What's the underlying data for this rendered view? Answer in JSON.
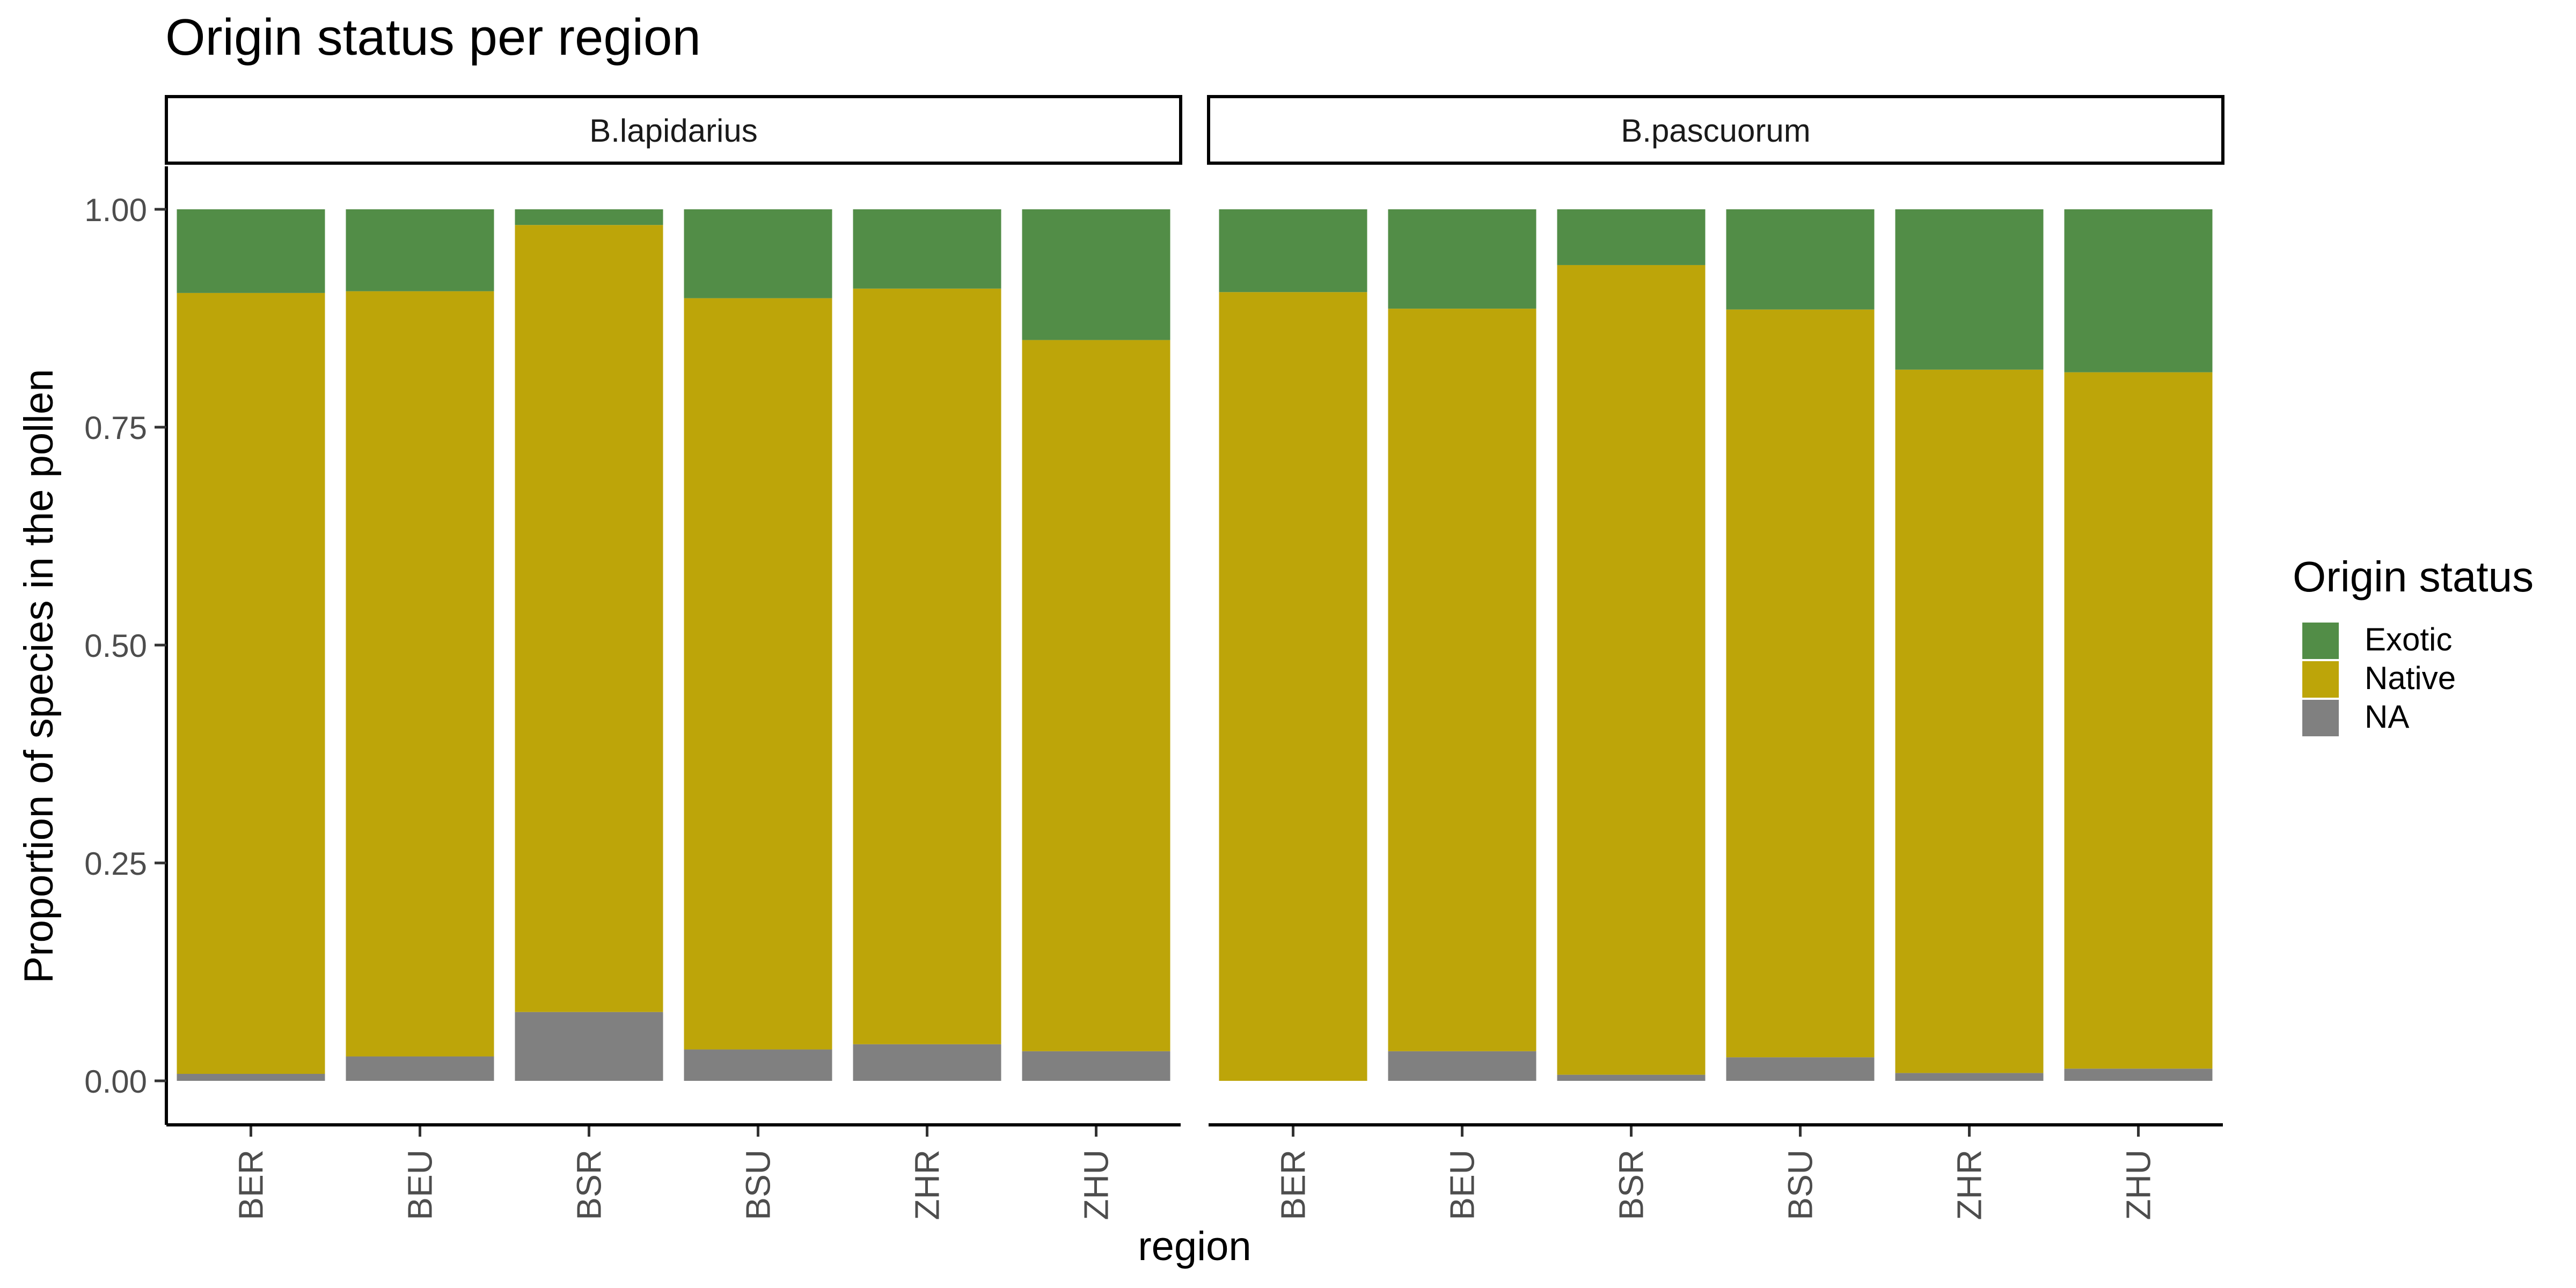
{
  "chart_data": {
    "type": "bar",
    "stacked": true,
    "title": "Origin status per region",
    "xlabel": "region",
    "ylabel": "Proportion of species in the pollen",
    "ylim": [
      0,
      1
    ],
    "yticks": [
      "0.00",
      "0.25",
      "0.50",
      "0.75",
      "1.00"
    ],
    "ytick_values": [
      0,
      0.25,
      0.5,
      0.75,
      1
    ],
    "grid": false,
    "legend": {
      "title": "Origin status",
      "position": "right",
      "entries": [
        {
          "name": "Exotic",
          "color": "#528D47"
        },
        {
          "name": "Native",
          "color": "#BDA509"
        },
        {
          "name": "NA",
          "color": "#808080"
        }
      ]
    },
    "categories": [
      "BER",
      "BEU",
      "BSR",
      "BSU",
      "ZHR",
      "ZHU"
    ],
    "facets": [
      {
        "label": "B.lapidarius",
        "series": [
          {
            "name": "NA",
            "values": [
              0.008,
              0.028,
              0.079,
              0.036,
              0.042,
              0.034
            ]
          },
          {
            "name": "Native",
            "values": [
              0.896,
              0.878,
              0.903,
              0.862,
              0.867,
              0.816
            ]
          },
          {
            "name": "Exotic",
            "values": [
              0.096,
              0.094,
              0.018,
              0.102,
              0.091,
              0.15
            ]
          }
        ]
      },
      {
        "label": "B.pascuorum",
        "series": [
          {
            "name": "NA",
            "values": [
              0.0,
              0.034,
              0.007,
              0.027,
              0.009,
              0.014
            ]
          },
          {
            "name": "Native",
            "values": [
              0.905,
              0.852,
              0.929,
              0.858,
              0.807,
              0.799
            ]
          },
          {
            "name": "Exotic",
            "values": [
              0.095,
              0.114,
              0.064,
              0.115,
              0.184,
              0.187
            ]
          }
        ]
      }
    ]
  }
}
